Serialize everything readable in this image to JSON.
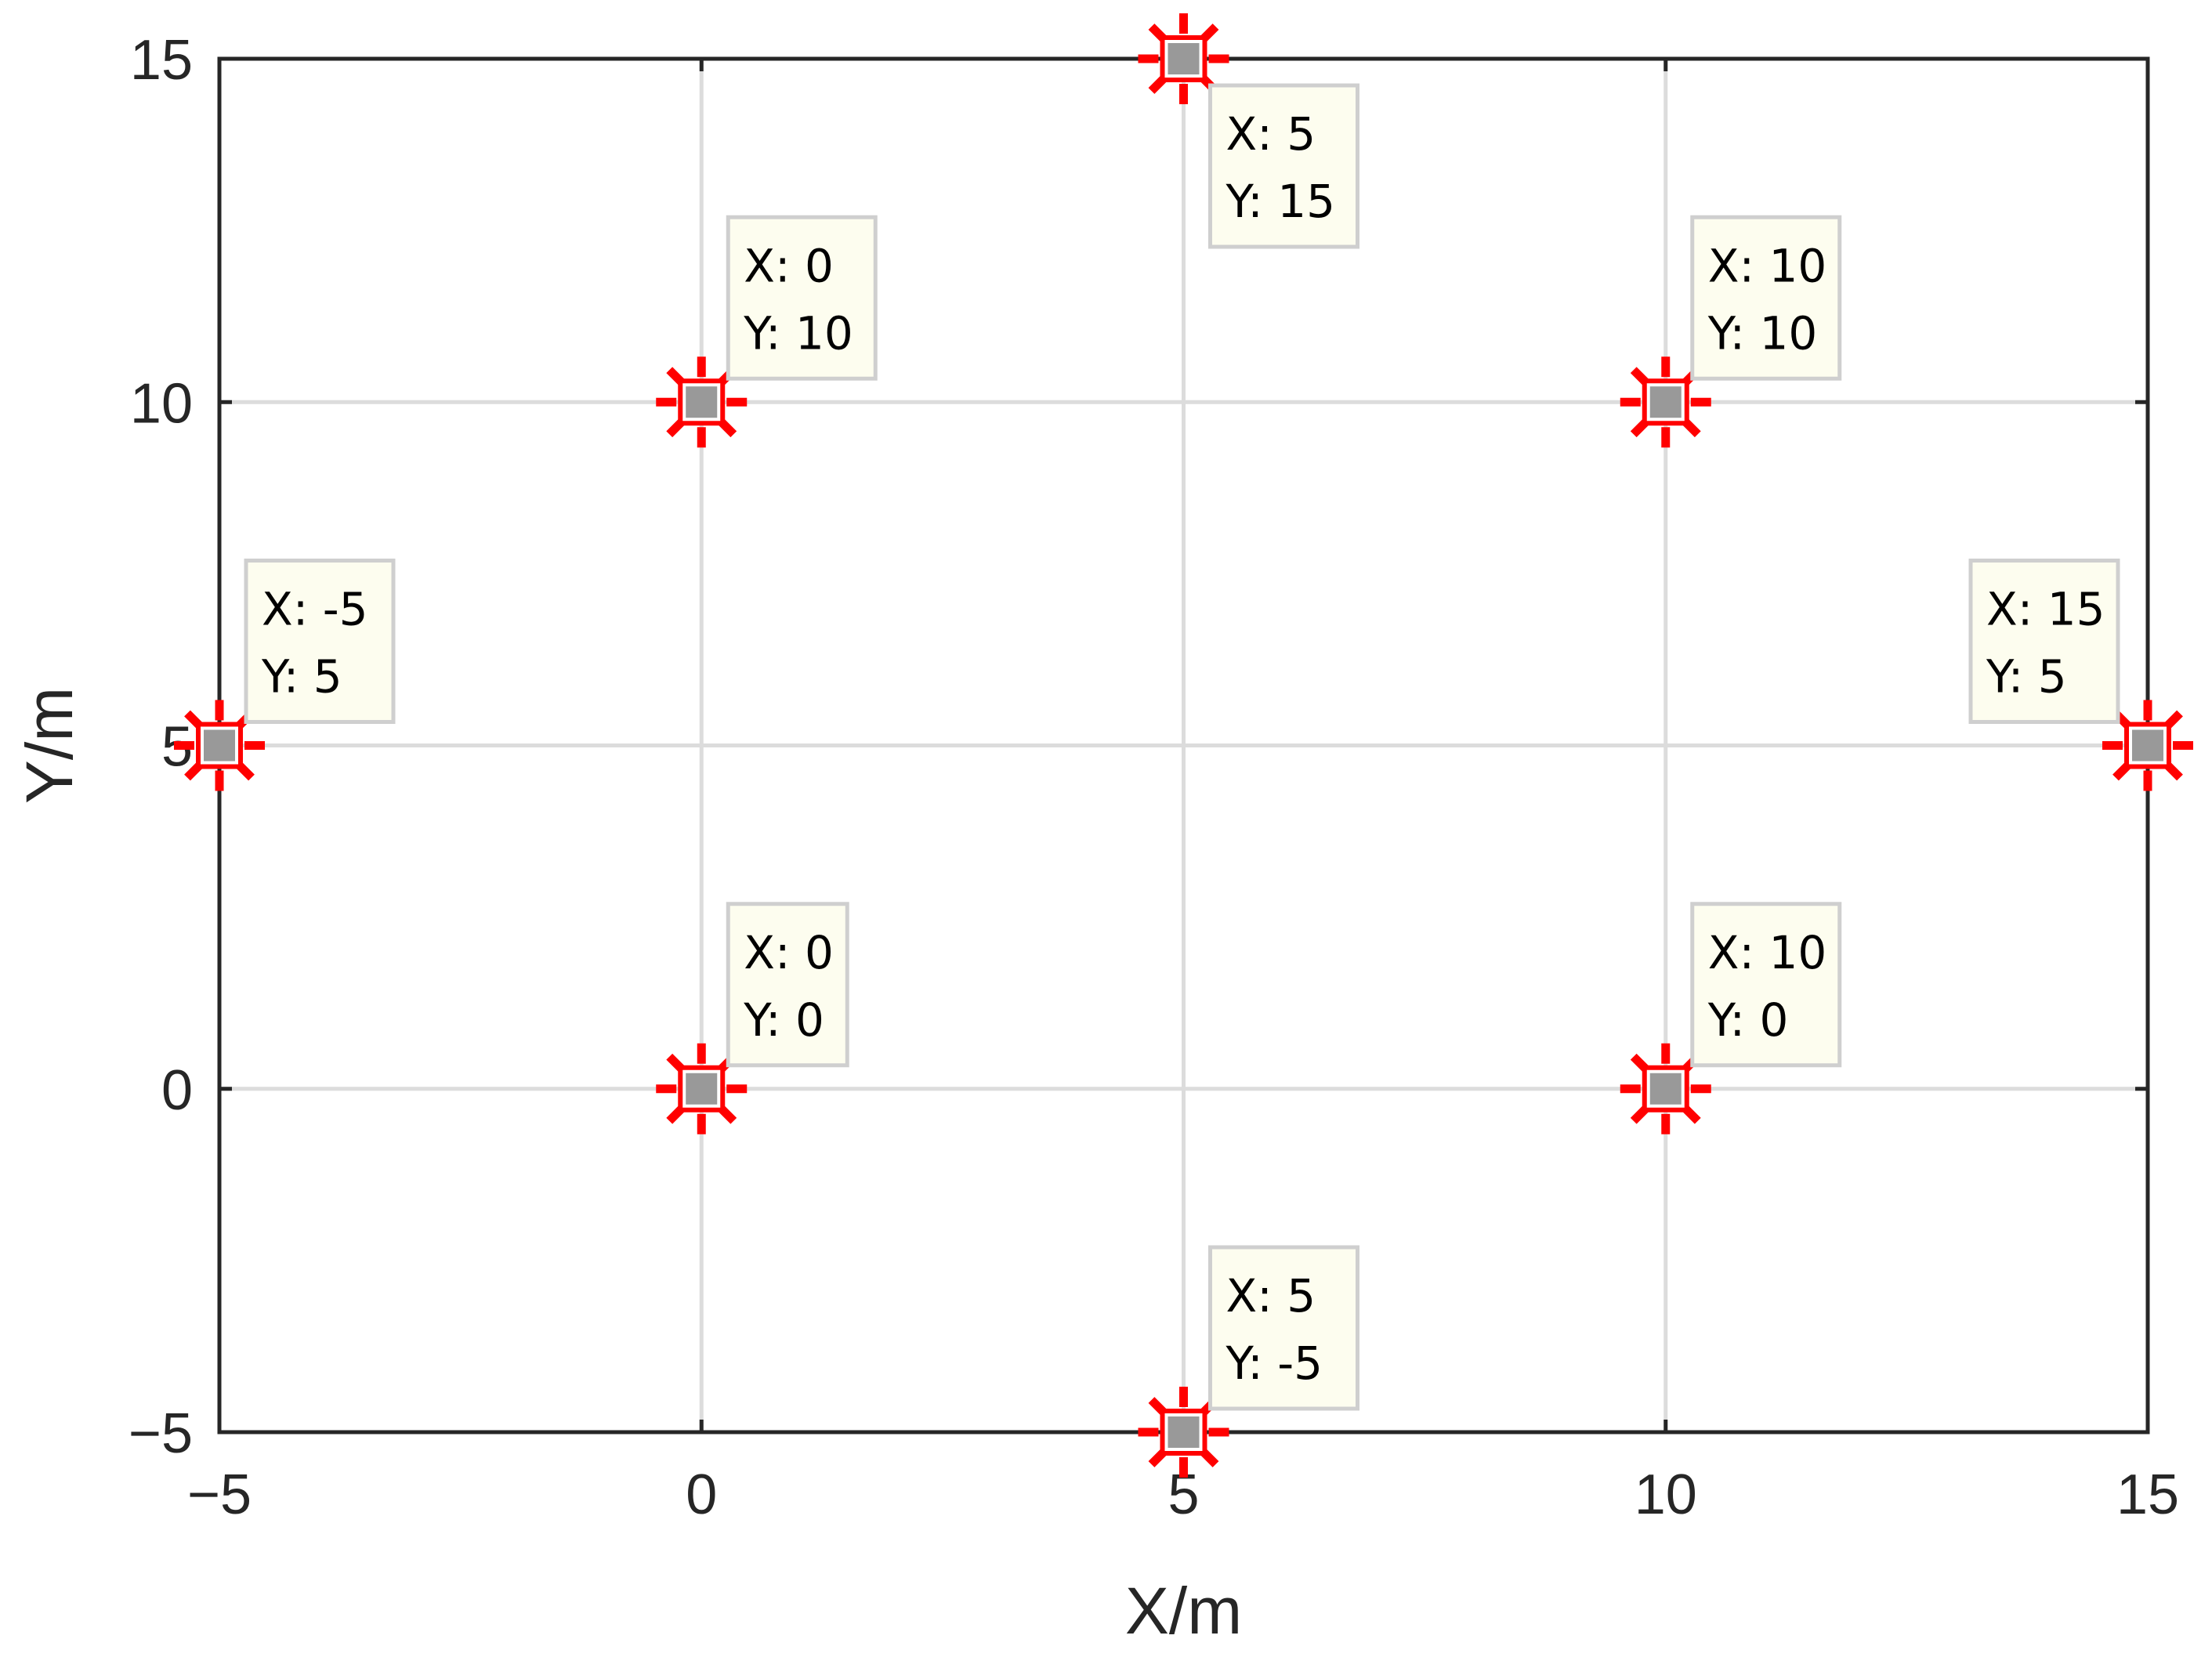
{
  "chart_data": {
    "type": "scatter",
    "title": "",
    "xlabel": "X/m",
    "ylabel": "Y/m",
    "xlim": [
      -5,
      15
    ],
    "ylim": [
      -5,
      15
    ],
    "xticks": [
      -5,
      0,
      5,
      10,
      15
    ],
    "yticks": [
      -5,
      0,
      5,
      10,
      15
    ],
    "xtick_labels": [
      "−5",
      "0",
      "5",
      "10",
      "15"
    ],
    "ytick_labels": [
      "−5",
      "0",
      "5",
      "10",
      "15"
    ],
    "grid": true,
    "marker_color": "#999999",
    "highlight_color": "#ff0000",
    "points": [
      {
        "x": 5,
        "y": 15,
        "tip_x": "X: 5",
        "tip_y": "Y: 15"
      },
      {
        "x": 0,
        "y": 10,
        "tip_x": "X: 0",
        "tip_y": "Y: 10"
      },
      {
        "x": 10,
        "y": 10,
        "tip_x": "X: 10",
        "tip_y": "Y: 10"
      },
      {
        "x": -5,
        "y": 5,
        "tip_x": "X: -5",
        "tip_y": "Y: 5"
      },
      {
        "x": 15,
        "y": 5,
        "tip_x": "X: 15",
        "tip_y": "Y: 5"
      },
      {
        "x": 0,
        "y": 0,
        "tip_x": "X: 0",
        "tip_y": "Y: 0"
      },
      {
        "x": 10,
        "y": 0,
        "tip_x": "X: 10",
        "tip_y": "Y: 0"
      },
      {
        "x": 5,
        "y": -5,
        "tip_x": "X: 5",
        "tip_y": "Y: -5"
      }
    ]
  }
}
